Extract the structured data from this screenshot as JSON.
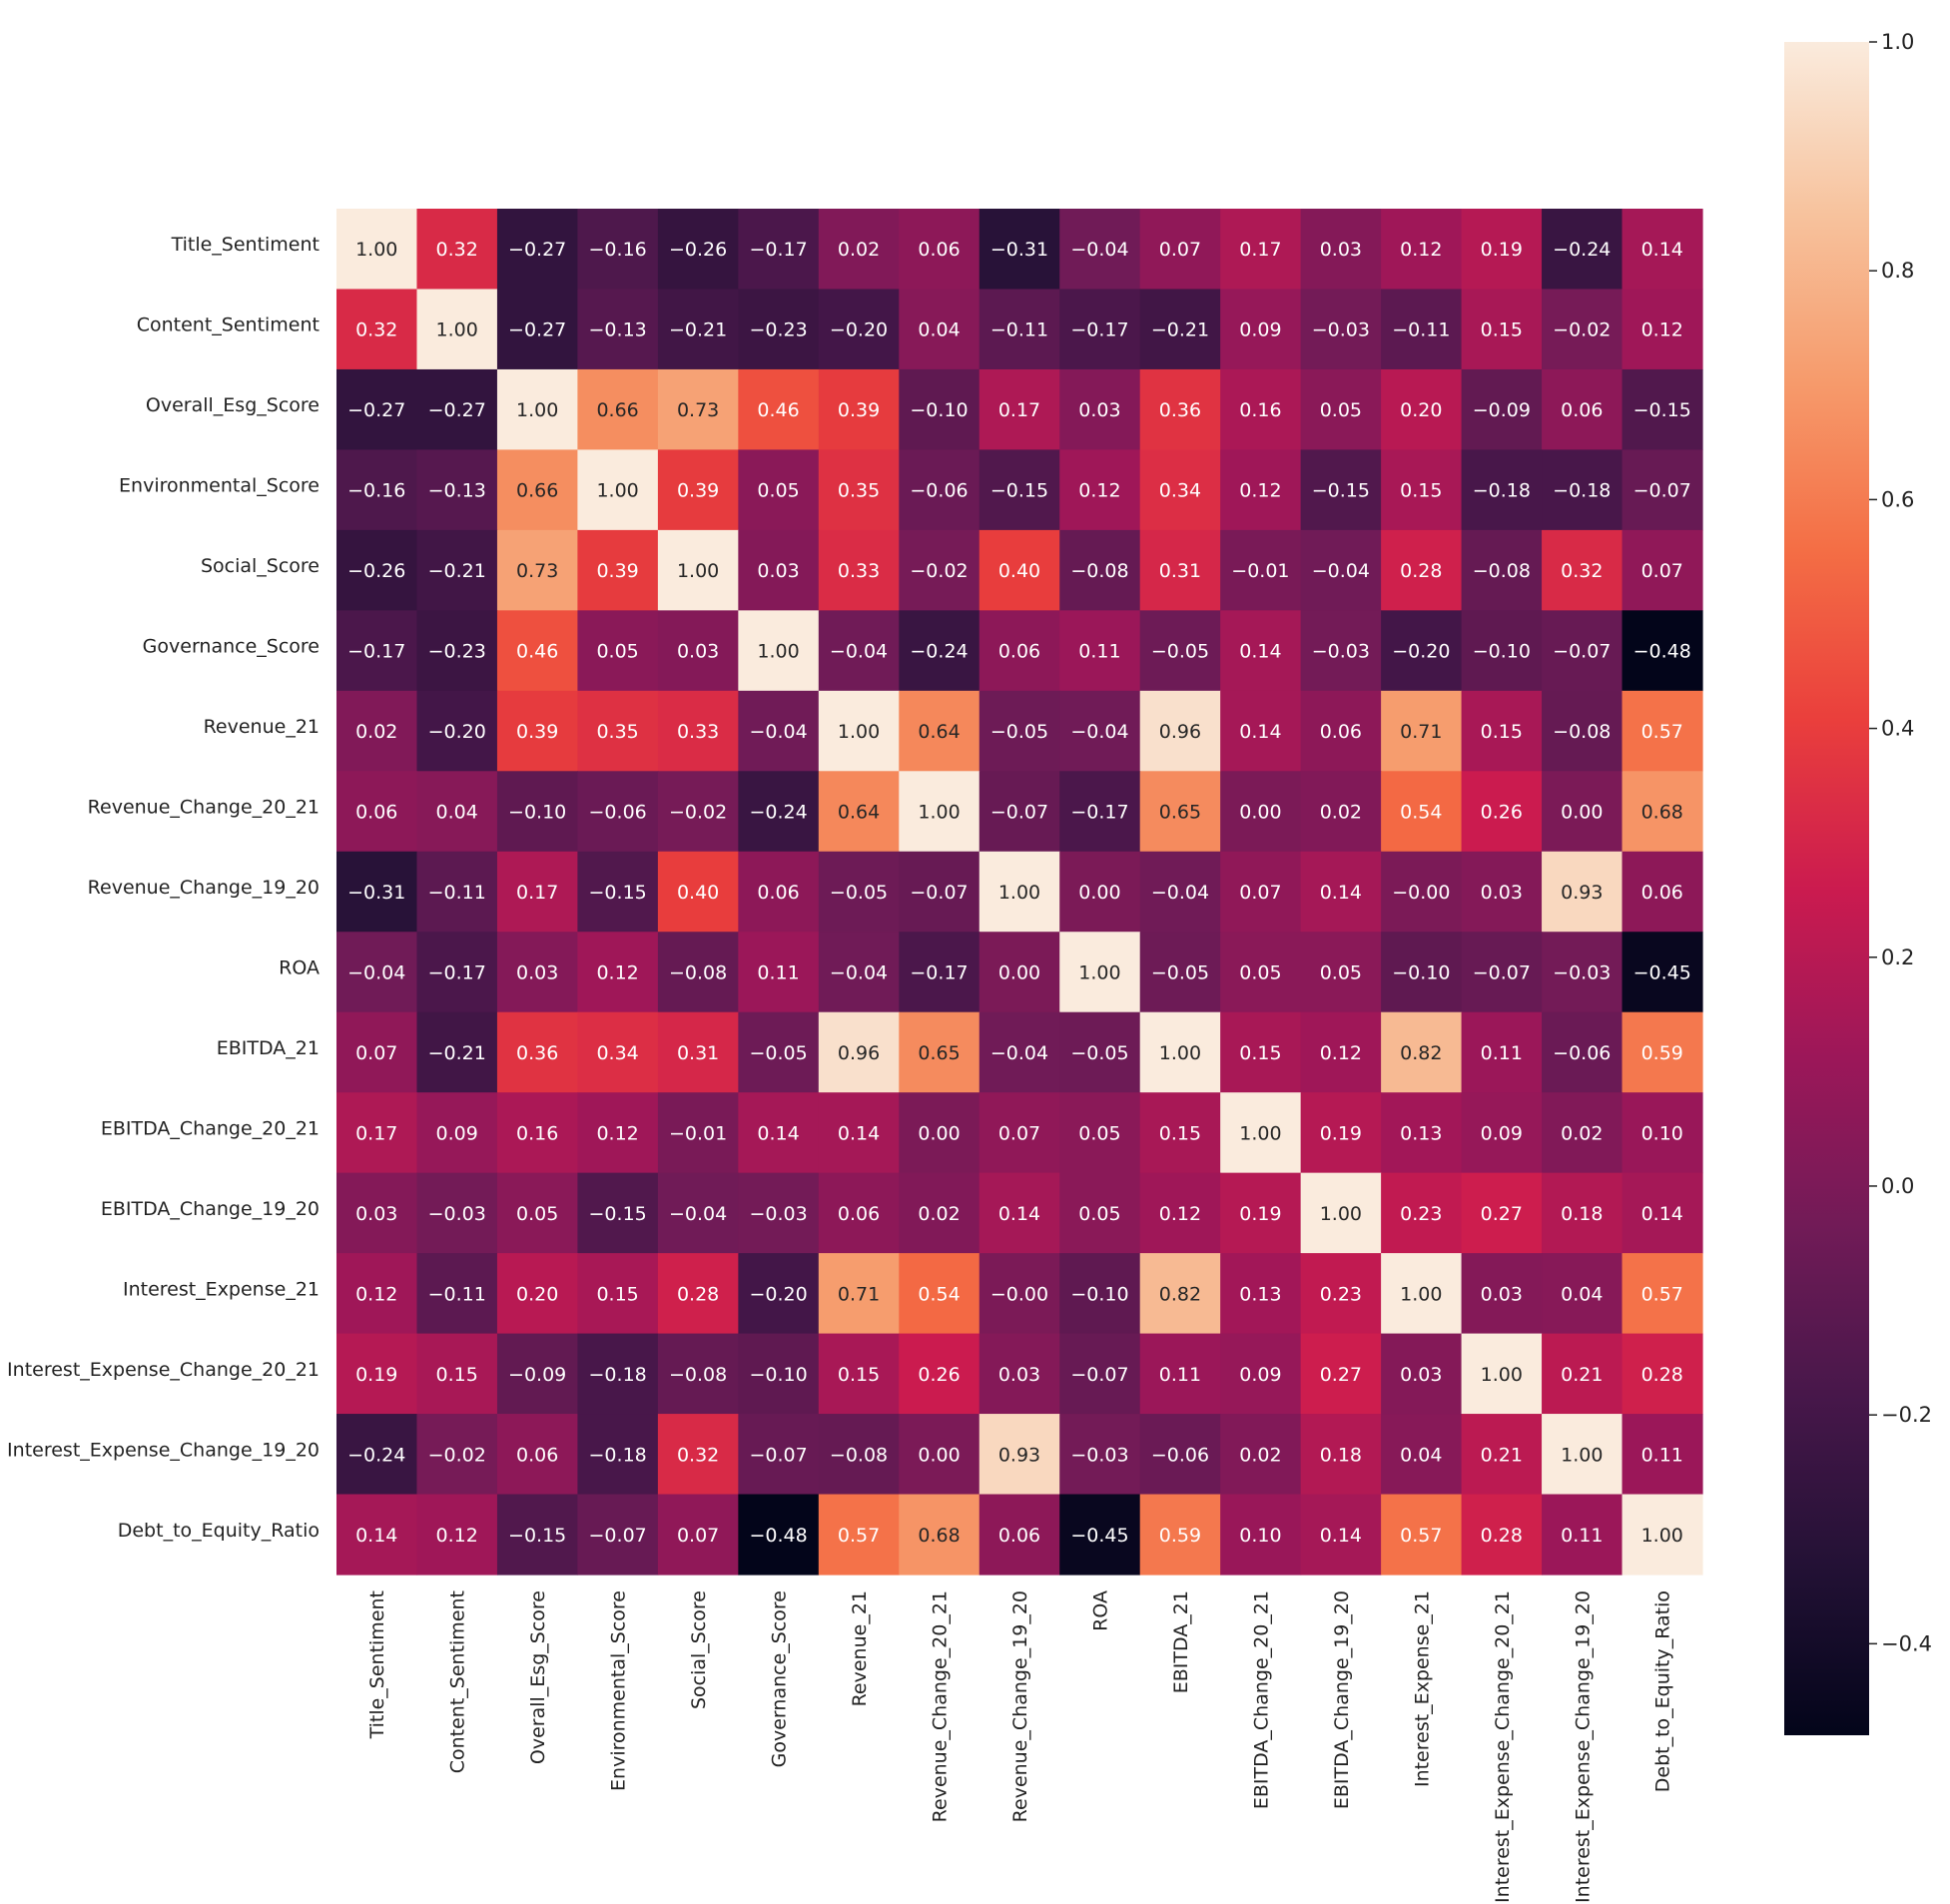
{
  "chart_data": {
    "type": "heatmap",
    "title": "",
    "xlabel": "",
    "ylabel": "",
    "labels": [
      "Title_Sentiment",
      "Content_Sentiment",
      "Overall_Esg_Score",
      "Environmental_Score",
      "Social_Score",
      "Governance_Score",
      "Revenue_21",
      "Revenue_Change_20_21",
      "Revenue_Change_19_20",
      "ROA",
      "EBITDA_21",
      "EBITDA_Change_20_21",
      "EBITDA_Change_19_20",
      "Interest_Expense_21",
      "Interest_Expense_Change_20_21",
      "Interest_Expense_Change_19_20",
      "Debt_to_Equity_Ratio"
    ],
    "display_labels": {
      "rows": [
        "Title_Sentiment",
        "Content_Sentiment",
        "Overall_Esg_Score",
        "Environmental_Score",
        "Social_Score",
        "Governance_Score",
        "Revenue_21",
        "Revenue_Change_20_21",
        "Revenue_Change_19_20",
        "ROA",
        "EBITDA_21",
        "EBITDA_Change_20_21",
        "EBITDA_Change_19_20",
        "Interest_Expense_21",
        "Interest_Expense_Change_20_21",
        "Interest_Expense_Change_19_20",
        "Debt_to_Equity_Ratio"
      ],
      "columns": [
        "Title_Sentiment",
        "Content_Sentiment",
        "Overall_Esg_Score",
        "Environmental_Score",
        "Social_Score",
        "Governance_Score",
        "Revenue_21",
        "Revenue_Change_20_21",
        "Revenue_Change_19_20",
        "ROA",
        "EBITDA_21",
        "EBITDA_Change_20_21",
        "EBITDA_Change_19_20",
        "Interest_Expense_21",
        "Interest_Expense_Change_20_21",
        "Interest_Expense_Change_19_20",
        "Debt_to_Equity_Ratio"
      ]
    },
    "values": [
      [
        1.0,
        0.32,
        -0.27,
        -0.16,
        -0.26,
        -0.17,
        0.02,
        0.06,
        -0.31,
        -0.04,
        0.07,
        0.17,
        0.03,
        0.12,
        0.19,
        -0.24,
        0.14
      ],
      [
        0.32,
        1.0,
        -0.27,
        -0.13,
        -0.21,
        -0.23,
        -0.2,
        0.04,
        -0.11,
        -0.17,
        -0.21,
        0.09,
        -0.03,
        -0.11,
        0.15,
        -0.02,
        0.12
      ],
      [
        -0.27,
        -0.27,
        1.0,
        0.66,
        0.73,
        0.46,
        0.39,
        -0.1,
        0.17,
        0.03,
        0.36,
        0.16,
        0.05,
        0.2,
        -0.09,
        0.06,
        -0.15
      ],
      [
        -0.16,
        -0.13,
        0.66,
        1.0,
        0.39,
        0.05,
        0.35,
        -0.06,
        -0.15,
        0.12,
        0.34,
        0.12,
        -0.15,
        0.15,
        -0.18,
        -0.18,
        -0.07
      ],
      [
        -0.26,
        -0.21,
        0.73,
        0.39,
        1.0,
        0.03,
        0.33,
        -0.02,
        0.4,
        -0.08,
        0.31,
        -0.01,
        -0.04,
        0.28,
        -0.08,
        0.32,
        0.07
      ],
      [
        -0.17,
        -0.23,
        0.46,
        0.05,
        0.03,
        1.0,
        -0.04,
        -0.24,
        0.06,
        0.11,
        -0.05,
        0.14,
        -0.03,
        -0.2,
        -0.1,
        -0.07,
        -0.48
      ],
      [
        0.02,
        -0.2,
        0.39,
        0.35,
        0.33,
        -0.04,
        1.0,
        0.64,
        -0.05,
        -0.04,
        0.96,
        0.14,
        0.06,
        0.71,
        0.15,
        -0.08,
        0.57
      ],
      [
        0.06,
        0.04,
        -0.1,
        -0.06,
        -0.02,
        -0.24,
        0.64,
        1.0,
        -0.07,
        -0.17,
        0.65,
        0.0,
        0.02,
        0.54,
        0.26,
        0.0,
        0.68
      ],
      [
        -0.31,
        -0.11,
        0.17,
        -0.15,
        0.4,
        0.06,
        -0.05,
        -0.07,
        1.0,
        0.0,
        -0.04,
        0.07,
        0.14,
        -0.0,
        0.03,
        0.93,
        0.06
      ],
      [
        -0.04,
        -0.17,
        0.03,
        0.12,
        -0.08,
        0.11,
        -0.04,
        -0.17,
        0.0,
        1.0,
        -0.05,
        0.05,
        0.05,
        -0.1,
        -0.07,
        -0.03,
        -0.45
      ],
      [
        0.07,
        -0.21,
        0.36,
        0.34,
        0.31,
        -0.05,
        0.96,
        0.65,
        -0.04,
        -0.05,
        1.0,
        0.15,
        0.12,
        0.82,
        0.11,
        -0.06,
        0.59
      ],
      [
        0.17,
        0.09,
        0.16,
        0.12,
        -0.01,
        0.14,
        0.14,
        0.0,
        0.07,
        0.05,
        0.15,
        1.0,
        0.19,
        0.13,
        0.09,
        0.02,
        0.1
      ],
      [
        0.03,
        -0.03,
        0.05,
        -0.15,
        -0.04,
        -0.03,
        0.06,
        0.02,
        0.14,
        0.05,
        0.12,
        0.19,
        1.0,
        0.23,
        0.27,
        0.18,
        0.14
      ],
      [
        0.12,
        -0.11,
        0.2,
        0.15,
        0.28,
        -0.2,
        0.71,
        0.54,
        -0.0,
        -0.1,
        0.82,
        0.13,
        0.23,
        1.0,
        0.03,
        0.04,
        0.57
      ],
      [
        0.19,
        0.15,
        -0.09,
        -0.18,
        -0.08,
        -0.1,
        0.15,
        0.26,
        0.03,
        -0.07,
        0.11,
        0.09,
        0.27,
        0.03,
        1.0,
        0.21,
        0.28
      ],
      [
        -0.24,
        -0.02,
        0.06,
        -0.18,
        0.32,
        -0.07,
        -0.08,
        0.0,
        0.93,
        -0.03,
        -0.06,
        0.02,
        0.18,
        0.04,
        0.21,
        1.0,
        0.11
      ],
      [
        0.14,
        0.12,
        -0.15,
        -0.07,
        0.07,
        -0.48,
        0.57,
        0.68,
        0.06,
        -0.45,
        0.59,
        0.1,
        0.14,
        0.57,
        0.28,
        0.11,
        1.0
      ]
    ],
    "value_format": "2 decimals, minus sign U+2212",
    "colormap": "rocket",
    "color_range": [
      -0.48,
      1.0
    ],
    "colorbar": {
      "ticks": [
        1.0,
        0.8,
        0.6,
        0.4,
        0.2,
        0.0,
        -0.2,
        -0.4
      ],
      "tick_labels": [
        "1.0",
        "0.8",
        "0.6",
        "0.4",
        "0.2",
        "0.0",
        "−0.2",
        "−0.4"
      ],
      "placement": "right"
    },
    "annotated": true,
    "grid": false,
    "legend": "colorbar-right"
  },
  "colors": {
    "background": "#ffffff",
    "text": "#222222",
    "annotation_light": "#ffffff",
    "annotation_dark": "#262626"
  }
}
